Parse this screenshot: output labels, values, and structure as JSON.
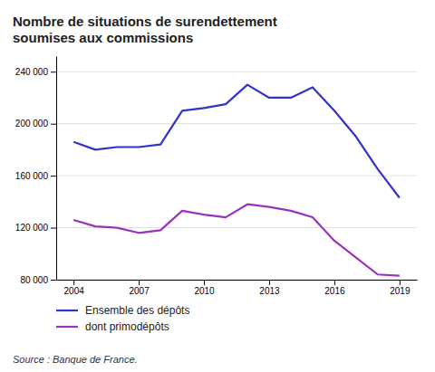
{
  "chart_data": {
    "type": "line",
    "title": "Nombre de situations de surendettement\nsoumises aux commissions",
    "source": "Source : Banque de France.",
    "x": [
      2004,
      2005,
      2006,
      2007,
      2008,
      2009,
      2010,
      2011,
      2012,
      2013,
      2014,
      2015,
      2016,
      2017,
      2018,
      2019
    ],
    "series": [
      {
        "name": "Ensemble des dépôts",
        "color": "#3333cc",
        "values": [
          186000,
          180000,
          182000,
          182000,
          184000,
          210000,
          212000,
          215000,
          230000,
          220000,
          220000,
          228000,
          210000,
          190000,
          165000,
          143000
        ]
      },
      {
        "name": "dont primodépôts",
        "color": "#9933bb",
        "values": [
          126000,
          121000,
          120000,
          116000,
          118000,
          133000,
          130000,
          128000,
          138000,
          136000,
          133000,
          128000,
          110000,
          97000,
          84000,
          83000
        ]
      }
    ],
    "xlim": [
      2003.2,
      2019.8
    ],
    "xticks": [
      2004,
      2007,
      2010,
      2013,
      2016,
      2019
    ],
    "ylim": [
      80000,
      252000
    ],
    "yticks": [
      {
        "value": 80000,
        "label": "80 000"
      },
      {
        "value": 120000,
        "label": "120 000"
      },
      {
        "value": 160000,
        "label": "160 000"
      },
      {
        "value": 200000,
        "label": "200 000"
      },
      {
        "value": 240000,
        "label": "240 000"
      }
    ],
    "grid": "y",
    "legend": "bottom"
  }
}
